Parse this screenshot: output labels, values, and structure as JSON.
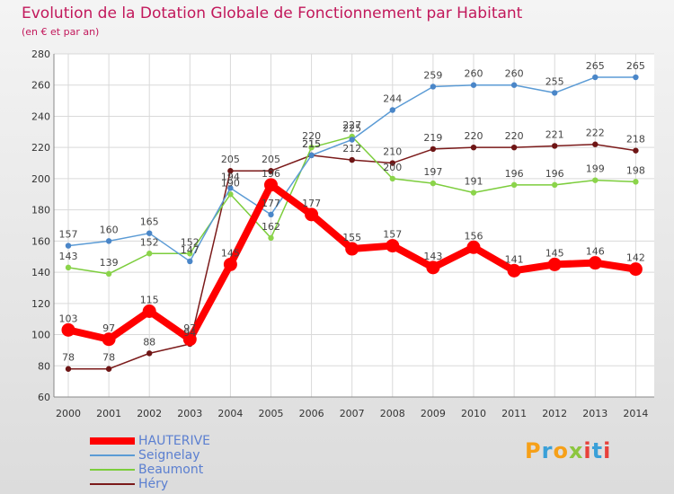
{
  "title": "Evolution de la Dotation Globale de Fonctionnement par Habitant",
  "subtitle": "(en € et par an)",
  "logo": {
    "text": "Proxiti",
    "colors": [
      "#f6a018",
      "#3aa0d8",
      "#8cc63f",
      "#e8403a"
    ]
  },
  "chart_data": {
    "type": "line",
    "title": "Evolution de la Dotation Globale de Fonctionnement par Habitant",
    "subtitle": "(en € et par an)",
    "xlabel": "",
    "ylabel": "",
    "ylim": [
      60,
      280
    ],
    "yticks": [
      60,
      80,
      100,
      120,
      140,
      160,
      180,
      200,
      220,
      240,
      260,
      280
    ],
    "x": [
      "2000",
      "2001",
      "2002",
      "2003",
      "2004",
      "2005",
      "2006",
      "2007",
      "2008",
      "2009",
      "2010",
      "2011",
      "2012",
      "2013",
      "2014"
    ],
    "grid": true,
    "legend_position": "bottom-left",
    "series": [
      {
        "name": "HAUTERIVE",
        "color": "#ff0000",
        "values": [
          103,
          97,
          115,
          97,
          145,
          196,
          177,
          155,
          157,
          143,
          156,
          141,
          145,
          146,
          142
        ]
      },
      {
        "name": "Seignelay",
        "color": "#5b9bd5",
        "values": [
          157,
          160,
          165,
          147,
          194,
          177,
          215,
          225,
          244,
          259,
          260,
          260,
          255,
          265,
          265
        ]
      },
      {
        "name": "Beaumont",
        "color": "#7ccd3c",
        "values": [
          143,
          139,
          152,
          152,
          190,
          162,
          220,
          227,
          200,
          197,
          191,
          196,
          196,
          199,
          198
        ]
      },
      {
        "name": "Héry",
        "color": "#7b1a1a",
        "values": [
          78,
          78,
          88,
          94,
          205,
          205,
          215,
          212,
          210,
          219,
          220,
          220,
          221,
          222,
          218
        ]
      }
    ]
  }
}
